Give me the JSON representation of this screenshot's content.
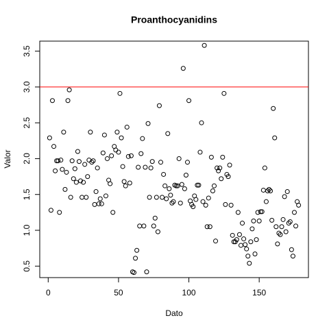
{
  "chart_data": {
    "type": "scatter",
    "title": "Proanthocyanidins",
    "xlabel": "Dato",
    "ylabel": "Valor",
    "x": [
      1,
      2,
      3,
      4,
      5,
      6,
      7,
      8,
      9,
      10,
      11,
      12,
      13,
      14,
      15,
      16,
      17,
      18,
      19,
      20,
      21,
      22,
      23,
      24,
      25,
      26,
      27,
      28,
      29,
      30,
      31,
      32,
      33,
      34,
      35,
      36,
      37,
      38,
      39,
      40,
      41,
      42,
      43,
      44,
      45,
      46,
      47,
      48,
      49,
      50,
      51,
      52,
      53,
      54,
      55,
      56,
      57,
      58,
      59,
      60,
      61,
      62,
      63,
      64,
      65,
      66,
      67,
      68,
      69,
      70,
      71,
      72,
      73,
      74,
      75,
      76,
      77,
      78,
      79,
      80,
      81,
      82,
      83,
      84,
      85,
      86,
      87,
      88,
      89,
      90,
      91,
      92,
      93,
      94,
      95,
      96,
      97,
      98,
      99,
      100,
      101,
      102,
      103,
      104,
      105,
      106,
      107,
      108,
      109,
      110,
      111,
      112,
      113,
      114,
      115,
      116,
      117,
      118,
      119,
      120,
      121,
      122,
      123,
      124,
      125,
      126,
      127,
      128,
      129,
      130,
      131,
      132,
      133,
      134,
      135,
      136,
      137,
      138,
      139,
      140,
      141,
      142,
      143,
      144,
      145,
      146,
      147,
      148,
      149,
      150,
      151,
      152,
      153,
      154,
      155,
      156,
      157,
      158,
      159,
      160,
      161,
      162,
      163,
      164,
      165,
      166,
      167,
      168,
      169,
      170,
      171,
      172,
      173,
      174,
      175,
      176,
      177,
      178
    ],
    "values": [
      2.29,
      1.28,
      2.81,
      2.17,
      1.83,
      1.97,
      1.97,
      1.25,
      1.98,
      1.85,
      2.37,
      1.57,
      1.81,
      2.81,
      2.96,
      1.46,
      1.97,
      1.72,
      1.86,
      1.67,
      2.1,
      1.96,
      1.69,
      1.46,
      1.67,
      1.92,
      1.46,
      1.75,
      1.98,
      2.37,
      1.95,
      1.97,
      1.36,
      1.54,
      1.87,
      1.37,
      1.44,
      1.37,
      2.08,
      2.33,
      1.48,
      2.0,
      1.7,
      1.65,
      2.04,
      1.25,
      2.17,
      2.12,
      2.37,
      2.09,
      2.91,
      2.29,
      1.89,
      1.68,
      1.62,
      2.44,
      2.03,
      1.66,
      2.04,
      0.42,
      0.41,
      0.61,
      0.72,
      1.88,
      1.06,
      2.07,
      2.28,
      1.06,
      1.88,
      0.42,
      2.49,
      1.46,
      1.87,
      1.96,
      1.06,
      1.17,
      1.46,
      0.98,
      2.74,
      1.95,
      1.46,
      1.78,
      1.62,
      1.44,
      2.35,
      1.58,
      1.49,
      1.38,
      1.4,
      1.63,
      1.62,
      1.62,
      2.0,
      1.38,
      1.64,
      3.26,
      1.58,
      1.77,
      1.95,
      2.81,
      1.41,
      1.36,
      1.33,
      1.48,
      1.43,
      1.63,
      1.63,
      2.09,
      2.5,
      1.4,
      3.58,
      1.35,
      1.05,
      1.45,
      1.05,
      2.02,
      1.55,
      1.62,
      0.85,
      1.87,
      1.83,
      1.87,
      1.72,
      2.02,
      2.91,
      1.36,
      1.78,
      1.75,
      1.91,
      1.35,
      0.93,
      0.84,
      0.84,
      0.87,
      1.25,
      0.94,
      0.79,
      1.1,
      0.88,
      0.8,
      0.74,
      0.64,
      0.54,
      0.84,
      1.02,
      1.13,
      0.67,
      0.87,
      1.25,
      1.13,
      1.26,
      1.26,
      1.56,
      1.87,
      1.4,
      1.55,
      1.57,
      1.55,
      1.14,
      2.7,
      2.29,
      1.05,
      0.81,
      0.96,
      0.94,
      1.05,
      1.15,
      1.47,
      0.98,
      1.54,
      1.1,
      1.12,
      0.73,
      0.64,
      1.25,
      1.06,
      1.4,
      1.35
    ],
    "xlim": [
      -6,
      185
    ],
    "ylim": [
      0.34,
      3.64
    ],
    "xticks": [
      0,
      50,
      100,
      150
    ],
    "yticks": [
      0.5,
      {
        "value": 1.0,
        "label": "1.0"
      },
      1.5,
      {
        "value": 2.0,
        "label": "2.0"
      },
      2.5,
      {
        "value": 3.0,
        "label": "3.0"
      },
      3.5
    ],
    "marker_color": "#000000",
    "hline": 3,
    "hline_color": "#ff0000"
  }
}
